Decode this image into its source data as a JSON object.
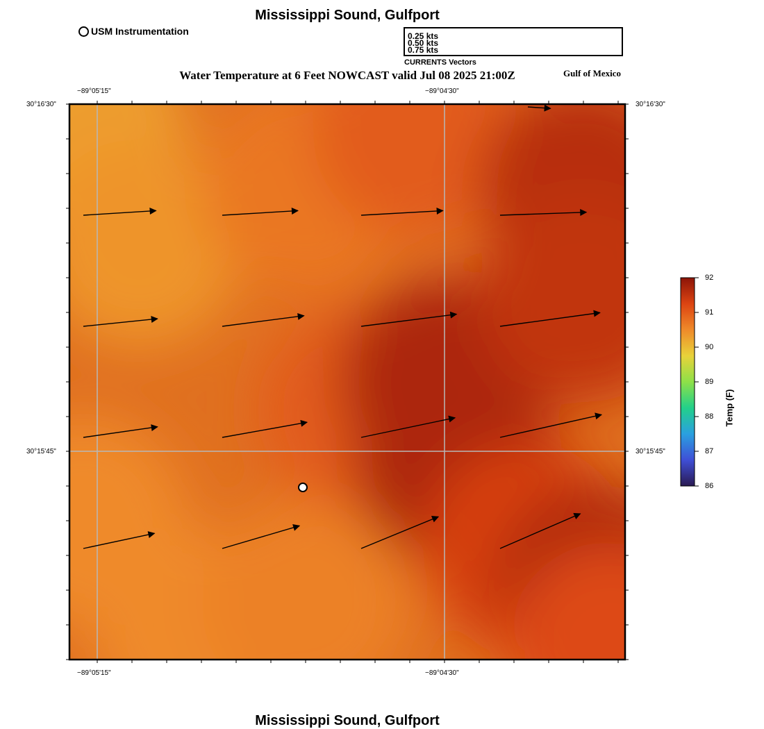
{
  "titles": {
    "top": "Mississippi Sound, Gulfport",
    "subtitle": "Water Temperature at 6 Feet NOWCAST valid Jul 08 2025 21:00Z",
    "bottom": "Mississippi Sound, Gulfport",
    "region": "Gulf of Mexico"
  },
  "station_legend": {
    "label": "USM Instrumentation"
  },
  "vector_legend": {
    "caption": "CURRENTS Vectors",
    "entries": [
      {
        "label": "0.25 kts",
        "speed_kts": 0.25
      },
      {
        "label": "0.50 kts",
        "speed_kts": 0.5
      },
      {
        "label": "0.75 kts",
        "speed_kts": 0.75
      }
    ]
  },
  "axes": {
    "lon_ticks": [
      {
        "label": "−89°05'15\"",
        "lon": -89.0875
      },
      {
        "label": "−89°04'30\"",
        "lon": -89.075
      }
    ],
    "lat_ticks": [
      {
        "label": "30°16'30\"",
        "lat": 30.275
      },
      {
        "label": "30°15'45\"",
        "lat": 30.2625
      }
    ]
  },
  "colorbar": {
    "title": "Temp (F)",
    "min": 86,
    "max": 92,
    "ticks": [
      "86",
      "87",
      "88",
      "89",
      "90",
      "91",
      "92"
    ],
    "colormap": [
      "#2a1a52",
      "#3f4fd6",
      "#2aa0e0",
      "#22d08a",
      "#8ee048",
      "#e8d23a",
      "#ef8a2a",
      "#dc4412",
      "#8c1408"
    ]
  },
  "chart_data": {
    "type": "heatmap",
    "title": "Water Temperature at 6 Feet NOWCAST valid Jul 08 2025 21:00Z",
    "units": "F",
    "lon_range": [
      -89.0885,
      -89.0685
    ],
    "lat_range": [
      30.255,
      30.275
    ],
    "temperature_samples": [
      {
        "lon": -89.088,
        "lat": 30.274,
        "temp": 90.3
      },
      {
        "lon": -89.086,
        "lat": 30.27,
        "temp": 90.4
      },
      {
        "lon": -89.088,
        "lat": 30.26,
        "temp": 90.5
      },
      {
        "lon": -89.084,
        "lat": 30.256,
        "temp": 90.5
      },
      {
        "lon": -89.08,
        "lat": 30.272,
        "temp": 90.7
      },
      {
        "lon": -89.078,
        "lat": 30.264,
        "temp": 91.0
      },
      {
        "lon": -89.08,
        "lat": 30.257,
        "temp": 90.6
      },
      {
        "lon": -89.076,
        "lat": 30.274,
        "temp": 91.0
      },
      {
        "lon": -89.075,
        "lat": 30.265,
        "temp": 91.7
      },
      {
        "lon": -89.0745,
        "lat": 30.262,
        "temp": 91.7
      },
      {
        "lon": -89.07,
        "lat": 30.272,
        "temp": 91.6
      },
      {
        "lon": -89.07,
        "lat": 30.268,
        "temp": 91.5
      },
      {
        "lon": -89.072,
        "lat": 30.259,
        "temp": 91.3
      },
      {
        "lon": -89.0695,
        "lat": 30.2575,
        "temp": 91.7
      },
      {
        "lon": -89.069,
        "lat": 30.2555,
        "temp": 91.2
      }
    ],
    "current_vectors": [
      {
        "lon": -89.088,
        "lat": 30.271,
        "u": 0.48,
        "v": 0.03
      },
      {
        "lon": -89.083,
        "lat": 30.271,
        "u": 0.5,
        "v": 0.03
      },
      {
        "lon": -89.078,
        "lat": 30.271,
        "u": 0.54,
        "v": 0.03
      },
      {
        "lon": -89.073,
        "lat": 30.271,
        "u": 0.57,
        "v": 0.02
      },
      {
        "lon": -89.088,
        "lat": 30.267,
        "u": 0.49,
        "v": 0.05
      },
      {
        "lon": -89.083,
        "lat": 30.267,
        "u": 0.54,
        "v": 0.07
      },
      {
        "lon": -89.078,
        "lat": 30.267,
        "u": 0.63,
        "v": 0.08
      },
      {
        "lon": -89.073,
        "lat": 30.267,
        "u": 0.66,
        "v": 0.09
      },
      {
        "lon": -89.088,
        "lat": 30.263,
        "u": 0.49,
        "v": 0.07
      },
      {
        "lon": -89.083,
        "lat": 30.263,
        "u": 0.56,
        "v": 0.1
      },
      {
        "lon": -89.078,
        "lat": 30.263,
        "u": 0.62,
        "v": 0.13
      },
      {
        "lon": -89.073,
        "lat": 30.263,
        "u": 0.67,
        "v": 0.15
      },
      {
        "lon": -89.088,
        "lat": 30.259,
        "u": 0.47,
        "v": 0.1
      },
      {
        "lon": -89.083,
        "lat": 30.259,
        "u": 0.51,
        "v": 0.15
      },
      {
        "lon": -89.078,
        "lat": 30.259,
        "u": 0.51,
        "v": 0.21
      },
      {
        "lon": -89.073,
        "lat": 30.259,
        "u": 0.53,
        "v": 0.23
      },
      {
        "lon": -89.072,
        "lat": 30.2749,
        "u": 0.15,
        "v": -0.01
      }
    ],
    "stations": [
      {
        "name": "USM Instrumentation",
        "lon": -89.0801,
        "lat": 30.2612
      }
    ]
  }
}
